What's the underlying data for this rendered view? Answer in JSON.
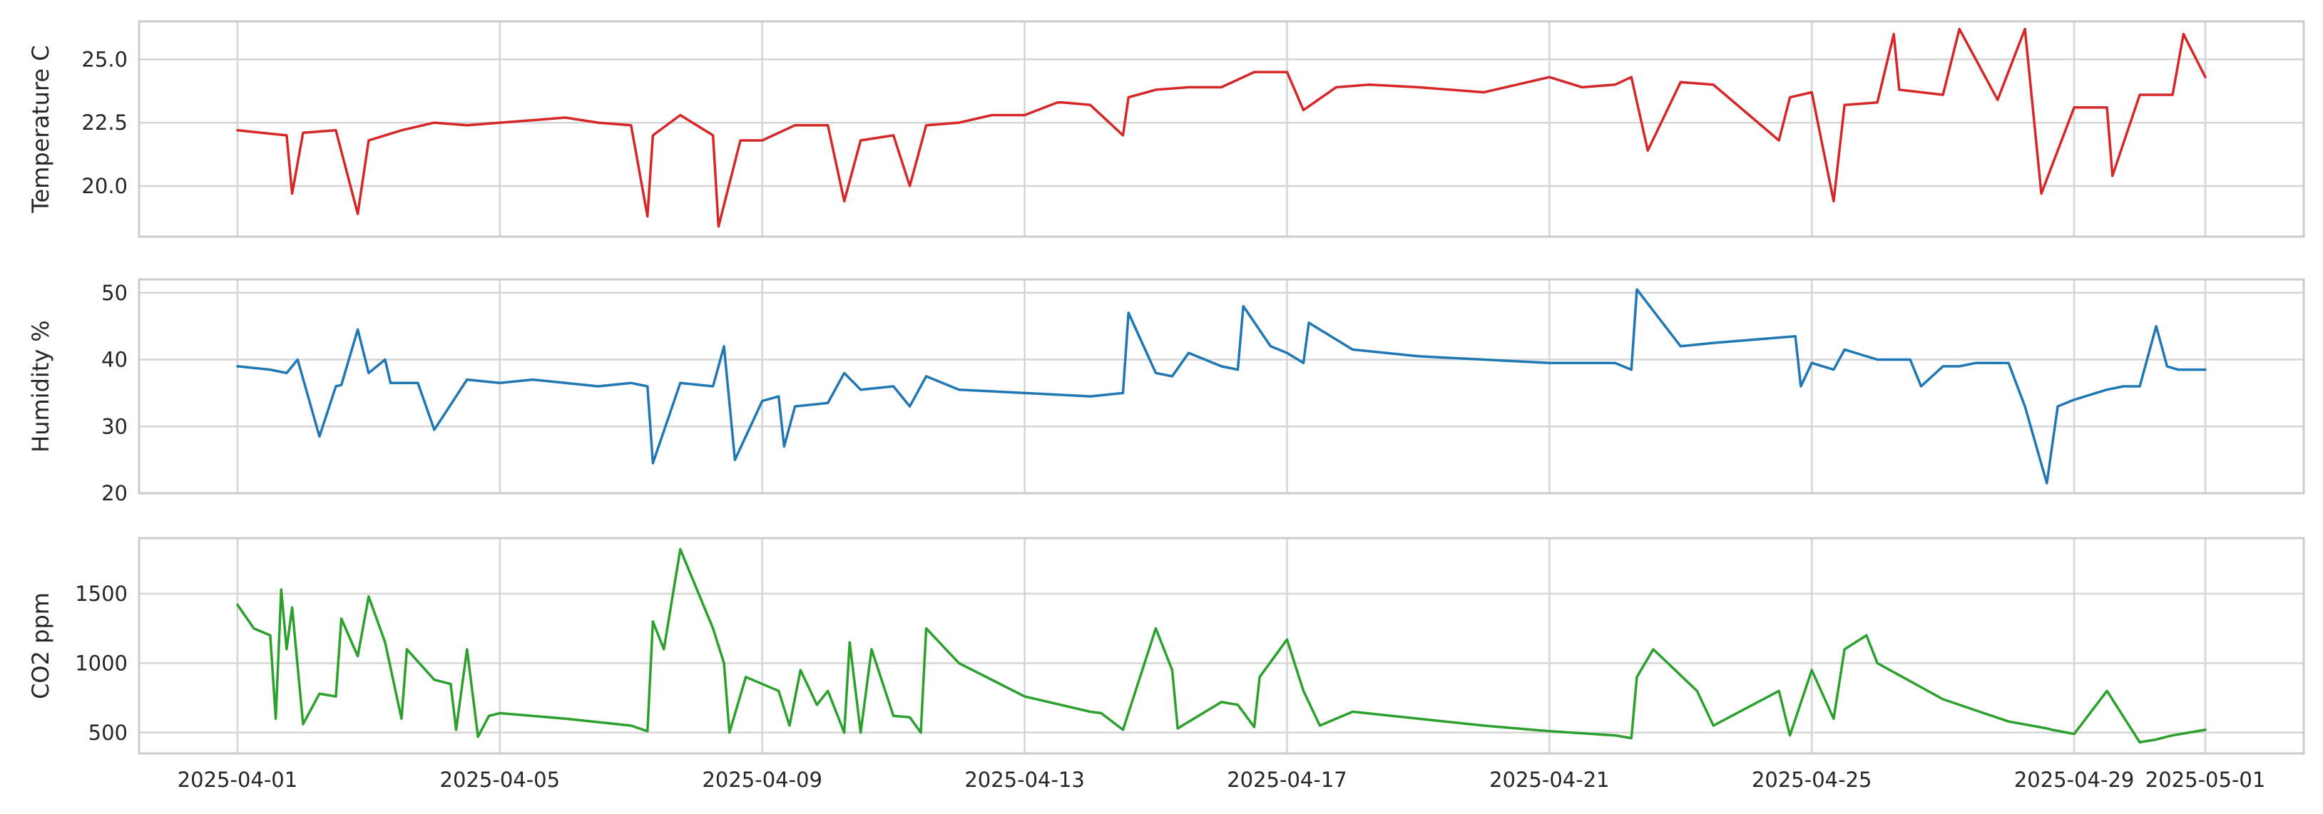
{
  "chart_data": [
    {
      "type": "line",
      "ylabel": "Temperature C",
      "ylim": [
        18.0,
        26.5
      ],
      "yticks": [
        "20.0",
        "22.5",
        "25.0"
      ],
      "color": "#d62728",
      "grid": true,
      "series": [
        {
          "x": [
            "2025-04-01",
            "2025-04-01 18:00",
            "2025-04-01 20:00",
            "2025-04-02 00:00",
            "2025-04-02 12:00",
            "2025-04-02 20:00",
            "2025-04-03 00:00",
            "2025-04-03 06:00",
            "2025-04-03 12:00",
            "2025-04-04 00:00",
            "2025-04-04 12:00",
            "2025-04-05 00:00",
            "2025-04-05 12:00",
            "2025-04-06 00:00",
            "2025-04-06 12:00",
            "2025-04-07 00:00",
            "2025-04-07 06:00",
            "2025-04-07 08:00",
            "2025-04-07 18:00",
            "2025-04-08 06:00",
            "2025-04-08 08:00",
            "2025-04-08 16:00",
            "2025-04-09 00:00",
            "2025-04-09 12:00",
            "2025-04-10 00:00",
            "2025-04-10 06:00",
            "2025-04-10 12:00",
            "2025-04-11 00:00",
            "2025-04-11 06:00",
            "2025-04-11 12:00",
            "2025-04-12 00:00",
            "2025-04-12 12:00",
            "2025-04-13 00:00",
            "2025-04-13 12:00",
            "2025-04-13 14:00",
            "2025-04-14 00:00",
            "2025-04-14 12:00",
            "2025-04-14 14:00",
            "2025-04-15 00:00",
            "2025-04-15 12:00",
            "2025-04-16 00:00",
            "2025-04-16 12:00",
            "2025-04-17 00:00",
            "2025-04-17 06:00",
            "2025-04-17 18:00",
            "2025-04-18 06:00",
            "2025-04-19 00:00",
            "2025-04-20 00:00",
            "2025-04-21 00:00",
            "2025-04-21 12:00",
            "2025-04-22 00:00",
            "2025-04-22 06:00",
            "2025-04-22 12:00",
            "2025-04-23 00:00",
            "2025-04-23 12:00",
            "2025-04-24 12:00",
            "2025-04-24 16:00",
            "2025-04-25 00:00",
            "2025-04-25 08:00",
            "2025-04-25 12:00",
            "2025-04-26 00:00",
            "2025-04-26 06:00",
            "2025-04-26 08:00",
            "2025-04-27 00:00",
            "2025-04-27 06:00",
            "2025-04-27 20:00",
            "2025-04-28 06:00",
            "2025-04-28 12:00",
            "2025-04-29 00:00",
            "2025-04-29 12:00",
            "2025-04-29 14:00",
            "2025-04-30 00:00",
            "2025-04-30 12:00",
            "2025-04-30 16:00",
            "2025-05-01 00:00"
          ],
          "values": [
            22.2,
            22.0,
            19.7,
            22.1,
            22.2,
            18.9,
            21.8,
            22.0,
            22.2,
            22.5,
            22.4,
            22.5,
            22.6,
            22.7,
            22.5,
            22.4,
            18.8,
            22.0,
            22.8,
            22.0,
            18.4,
            21.8,
            21.8,
            22.4,
            22.4,
            19.4,
            21.8,
            22.0,
            20.0,
            22.4,
            22.5,
            22.8,
            22.8,
            23.3,
            23.3,
            23.2,
            22.0,
            23.5,
            23.8,
            23.9,
            23.9,
            24.5,
            24.5,
            23.0,
            23.9,
            24.0,
            23.9,
            23.7,
            24.3,
            23.9,
            24.0,
            24.3,
            21.4,
            24.1,
            24.0,
            21.8,
            23.5,
            23.7,
            19.4,
            23.2,
            23.3,
            26.0,
            23.8,
            23.6,
            26.2,
            23.4,
            26.2,
            19.7,
            23.1,
            23.1,
            20.4,
            23.6,
            23.6,
            26.0,
            24.3
          ]
        }
      ]
    },
    {
      "type": "line",
      "ylabel": "Humidity %",
      "ylim": [
        20,
        52
      ],
      "yticks": [
        "20",
        "30",
        "40",
        "50"
      ],
      "color": "#1f77b4",
      "grid": true,
      "series": [
        {
          "x": [
            "2025-04-01",
            "2025-04-01 12:00",
            "2025-04-01 18:00",
            "2025-04-01 22:00",
            "2025-04-02 06:00",
            "2025-04-02 12:00",
            "2025-04-02 14:00",
            "2025-04-02 20:00",
            "2025-04-03 00:00",
            "2025-04-03 06:00",
            "2025-04-03 08:00",
            "2025-04-03 18:00",
            "2025-04-04 00:00",
            "2025-04-04 12:00",
            "2025-04-05 00:00",
            "2025-04-05 12:00",
            "2025-04-06 00:00",
            "2025-04-06 12:00",
            "2025-04-07 00:00",
            "2025-04-07 06:00",
            "2025-04-07 08:00",
            "2025-04-07 18:00",
            "2025-04-08 06:00",
            "2025-04-08 10:00",
            "2025-04-08 14:00",
            "2025-04-09 00:00",
            "2025-04-09 06:00",
            "2025-04-09 08:00",
            "2025-04-09 12:00",
            "2025-04-10 00:00",
            "2025-04-10 06:00",
            "2025-04-10 12:00",
            "2025-04-11 00:00",
            "2025-04-11 06:00",
            "2025-04-11 12:00",
            "2025-04-12 00:00",
            "2025-04-13 00:00",
            "2025-04-14 00:00",
            "2025-04-14 12:00",
            "2025-04-14 14:00",
            "2025-04-15 00:00",
            "2025-04-15 06:00",
            "2025-04-15 12:00",
            "2025-04-16 00:00",
            "2025-04-16 06:00",
            "2025-04-16 08:00",
            "2025-04-16 18:00",
            "2025-04-17 00:00",
            "2025-04-17 06:00",
            "2025-04-17 08:00",
            "2025-04-18 00:00",
            "2025-04-19 00:00",
            "2025-04-20 00:00",
            "2025-04-21 00:00",
            "2025-04-22 00:00",
            "2025-04-22 06:00",
            "2025-04-22 08:00",
            "2025-04-23 00:00",
            "2025-04-23 12:00",
            "2025-04-24 18:00",
            "2025-04-24 20:00",
            "2025-04-25 00:00",
            "2025-04-25 08:00",
            "2025-04-25 12:00",
            "2025-04-26 00:00",
            "2025-04-26 12:00",
            "2025-04-26 16:00",
            "2025-04-27 00:00",
            "2025-04-27 06:00",
            "2025-04-27 12:00",
            "2025-04-28 00:00",
            "2025-04-28 06:00",
            "2025-04-28 14:00",
            "2025-04-28 18:00",
            "2025-04-29 00:00",
            "2025-04-29 12:00",
            "2025-04-29 18:00",
            "2025-04-30 00:00",
            "2025-04-30 06:00",
            "2025-04-30 10:00",
            "2025-04-30 14:00",
            "2025-05-01 00:00"
          ],
          "values": [
            39.0,
            38.5,
            38.0,
            40.0,
            28.5,
            36.0,
            36.2,
            44.5,
            38.0,
            40.0,
            36.5,
            36.5,
            29.5,
            37.0,
            36.5,
            37.0,
            36.5,
            36.0,
            36.5,
            36.0,
            24.5,
            36.5,
            36.0,
            42.0,
            25.0,
            33.8,
            34.5,
            27.0,
            33.0,
            33.5,
            38.0,
            35.5,
            36.0,
            33.0,
            37.5,
            35.5,
            35.0,
            34.5,
            35.0,
            47.0,
            38.0,
            37.5,
            41.0,
            39.0,
            38.5,
            48.0,
            42.0,
            41.0,
            39.5,
            45.5,
            41.5,
            40.5,
            40.0,
            39.5,
            39.5,
            38.5,
            50.5,
            42.0,
            42.5,
            43.5,
            36.0,
            39.5,
            38.5,
            41.5,
            40.0,
            40.0,
            36.0,
            39.0,
            39.0,
            39.5,
            39.5,
            33.0,
            21.5,
            33.0,
            34.0,
            35.5,
            36.0,
            36.0,
            45.0,
            39.0,
            38.5,
            38.5
          ]
        }
      ]
    },
    {
      "type": "line",
      "ylabel": "CO2 ppm",
      "ylim": [
        350,
        1900
      ],
      "yticks": [
        "500",
        "1000",
        "1500"
      ],
      "color": "#2ca02c",
      "grid": true,
      "series": [
        {
          "x": [
            "2025-04-01",
            "2025-04-01 06:00",
            "2025-04-01 12:00",
            "2025-04-01 14:00",
            "2025-04-01 16:00",
            "2025-04-01 18:00",
            "2025-04-01 20:00",
            "2025-04-02 00:00",
            "2025-04-02 06:00",
            "2025-04-02 12:00",
            "2025-04-02 14:00",
            "2025-04-02 20:00",
            "2025-04-03 00:00",
            "2025-04-03 06:00",
            "2025-04-03 12:00",
            "2025-04-03 14:00",
            "2025-04-04 00:00",
            "2025-04-04 06:00",
            "2025-04-04 08:00",
            "2025-04-04 12:00",
            "2025-04-04 16:00",
            "2025-04-04 20:00",
            "2025-04-05 00:00",
            "2025-04-06 00:00",
            "2025-04-07 00:00",
            "2025-04-07 06:00",
            "2025-04-07 08:00",
            "2025-04-07 12:00",
            "2025-04-07 18:00",
            "2025-04-08 06:00",
            "2025-04-08 10:00",
            "2025-04-08 12:00",
            "2025-04-08 18:00",
            "2025-04-09 06:00",
            "2025-04-09 10:00",
            "2025-04-09 14:00",
            "2025-04-09 20:00",
            "2025-04-10 00:00",
            "2025-04-10 06:00",
            "2025-04-10 08:00",
            "2025-04-10 12:00",
            "2025-04-10 16:00",
            "2025-04-11 00:00",
            "2025-04-11 06:00",
            "2025-04-11 10:00",
            "2025-04-11 12:00",
            "2025-04-12 00:00",
            "2025-04-13 00:00",
            "2025-04-14 00:00",
            "2025-04-14 04:00",
            "2025-04-14 12:00",
            "2025-04-15 00:00",
            "2025-04-15 06:00",
            "2025-04-15 08:00",
            "2025-04-16 00:00",
            "2025-04-16 06:00",
            "2025-04-16 12:00",
            "2025-04-16 14:00",
            "2025-04-17 00:00",
            "2025-04-17 06:00",
            "2025-04-17 12:00",
            "2025-04-18 00:00",
            "2025-04-19 00:00",
            "2025-04-20 00:00",
            "2025-04-21 00:00",
            "2025-04-22 00:00",
            "2025-04-22 06:00",
            "2025-04-22 08:00",
            "2025-04-22 14:00",
            "2025-04-23 06:00",
            "2025-04-23 12:00",
            "2025-04-24 12:00",
            "2025-04-24 16:00",
            "2025-04-25 00:00",
            "2025-04-25 08:00",
            "2025-04-25 12:00",
            "2025-04-25 20:00",
            "2025-04-26 00:00",
            "2025-04-27 00:00",
            "2025-04-28 00:00",
            "2025-04-28 14:00",
            "2025-04-28 16:00",
            "2025-04-29 00:00",
            "2025-04-29 12:00",
            "2025-04-30 00:00",
            "2025-04-30 06:00",
            "2025-04-30 10:00",
            "2025-04-30 12:00",
            "2025-05-01 00:00"
          ],
          "values": [
            1420,
            1250,
            1200,
            600,
            1530,
            1100,
            1400,
            560,
            780,
            760,
            1320,
            1050,
            1480,
            1150,
            600,
            1100,
            880,
            850,
            520,
            1100,
            470,
            620,
            640,
            600,
            550,
            510,
            1300,
            1100,
            1820,
            1250,
            1000,
            500,
            900,
            800,
            550,
            950,
            700,
            800,
            500,
            1150,
            500,
            1100,
            620,
            610,
            500,
            1250,
            1000,
            760,
            650,
            640,
            520,
            1250,
            950,
            530,
            720,
            700,
            540,
            900,
            1170,
            800,
            550,
            650,
            600,
            550,
            510,
            480,
            460,
            900,
            1100,
            800,
            550,
            800,
            480,
            950,
            600,
            1100,
            1200,
            1000,
            740,
            580,
            530,
            520,
            490,
            800,
            430,
            450,
            470,
            480,
            520
          ]
        }
      ]
    }
  ],
  "x_axis": {
    "ticks": [
      "2025-04-01",
      "2025-04-05",
      "2025-04-09",
      "2025-04-13",
      "2025-04-17",
      "2025-04-21",
      "2025-04-25",
      "2025-04-29",
      "2025-05-01"
    ],
    "xlim": [
      "2025-03-30 12:00",
      "2025-05-02 12:00"
    ]
  }
}
